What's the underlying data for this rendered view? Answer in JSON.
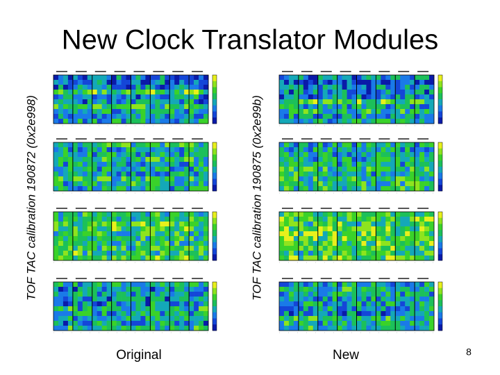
{
  "header": {
    "title": "New Clock Translator Modules"
  },
  "panels": [
    {
      "label": "TOF TAC calibration 190872 (0x2e998)",
      "caption": "Original"
    },
    {
      "label": "TOF TAC calibration 190875 (0x2e99b)",
      "caption": "New"
    }
  ],
  "footer": {
    "page_number": "8"
  }
}
